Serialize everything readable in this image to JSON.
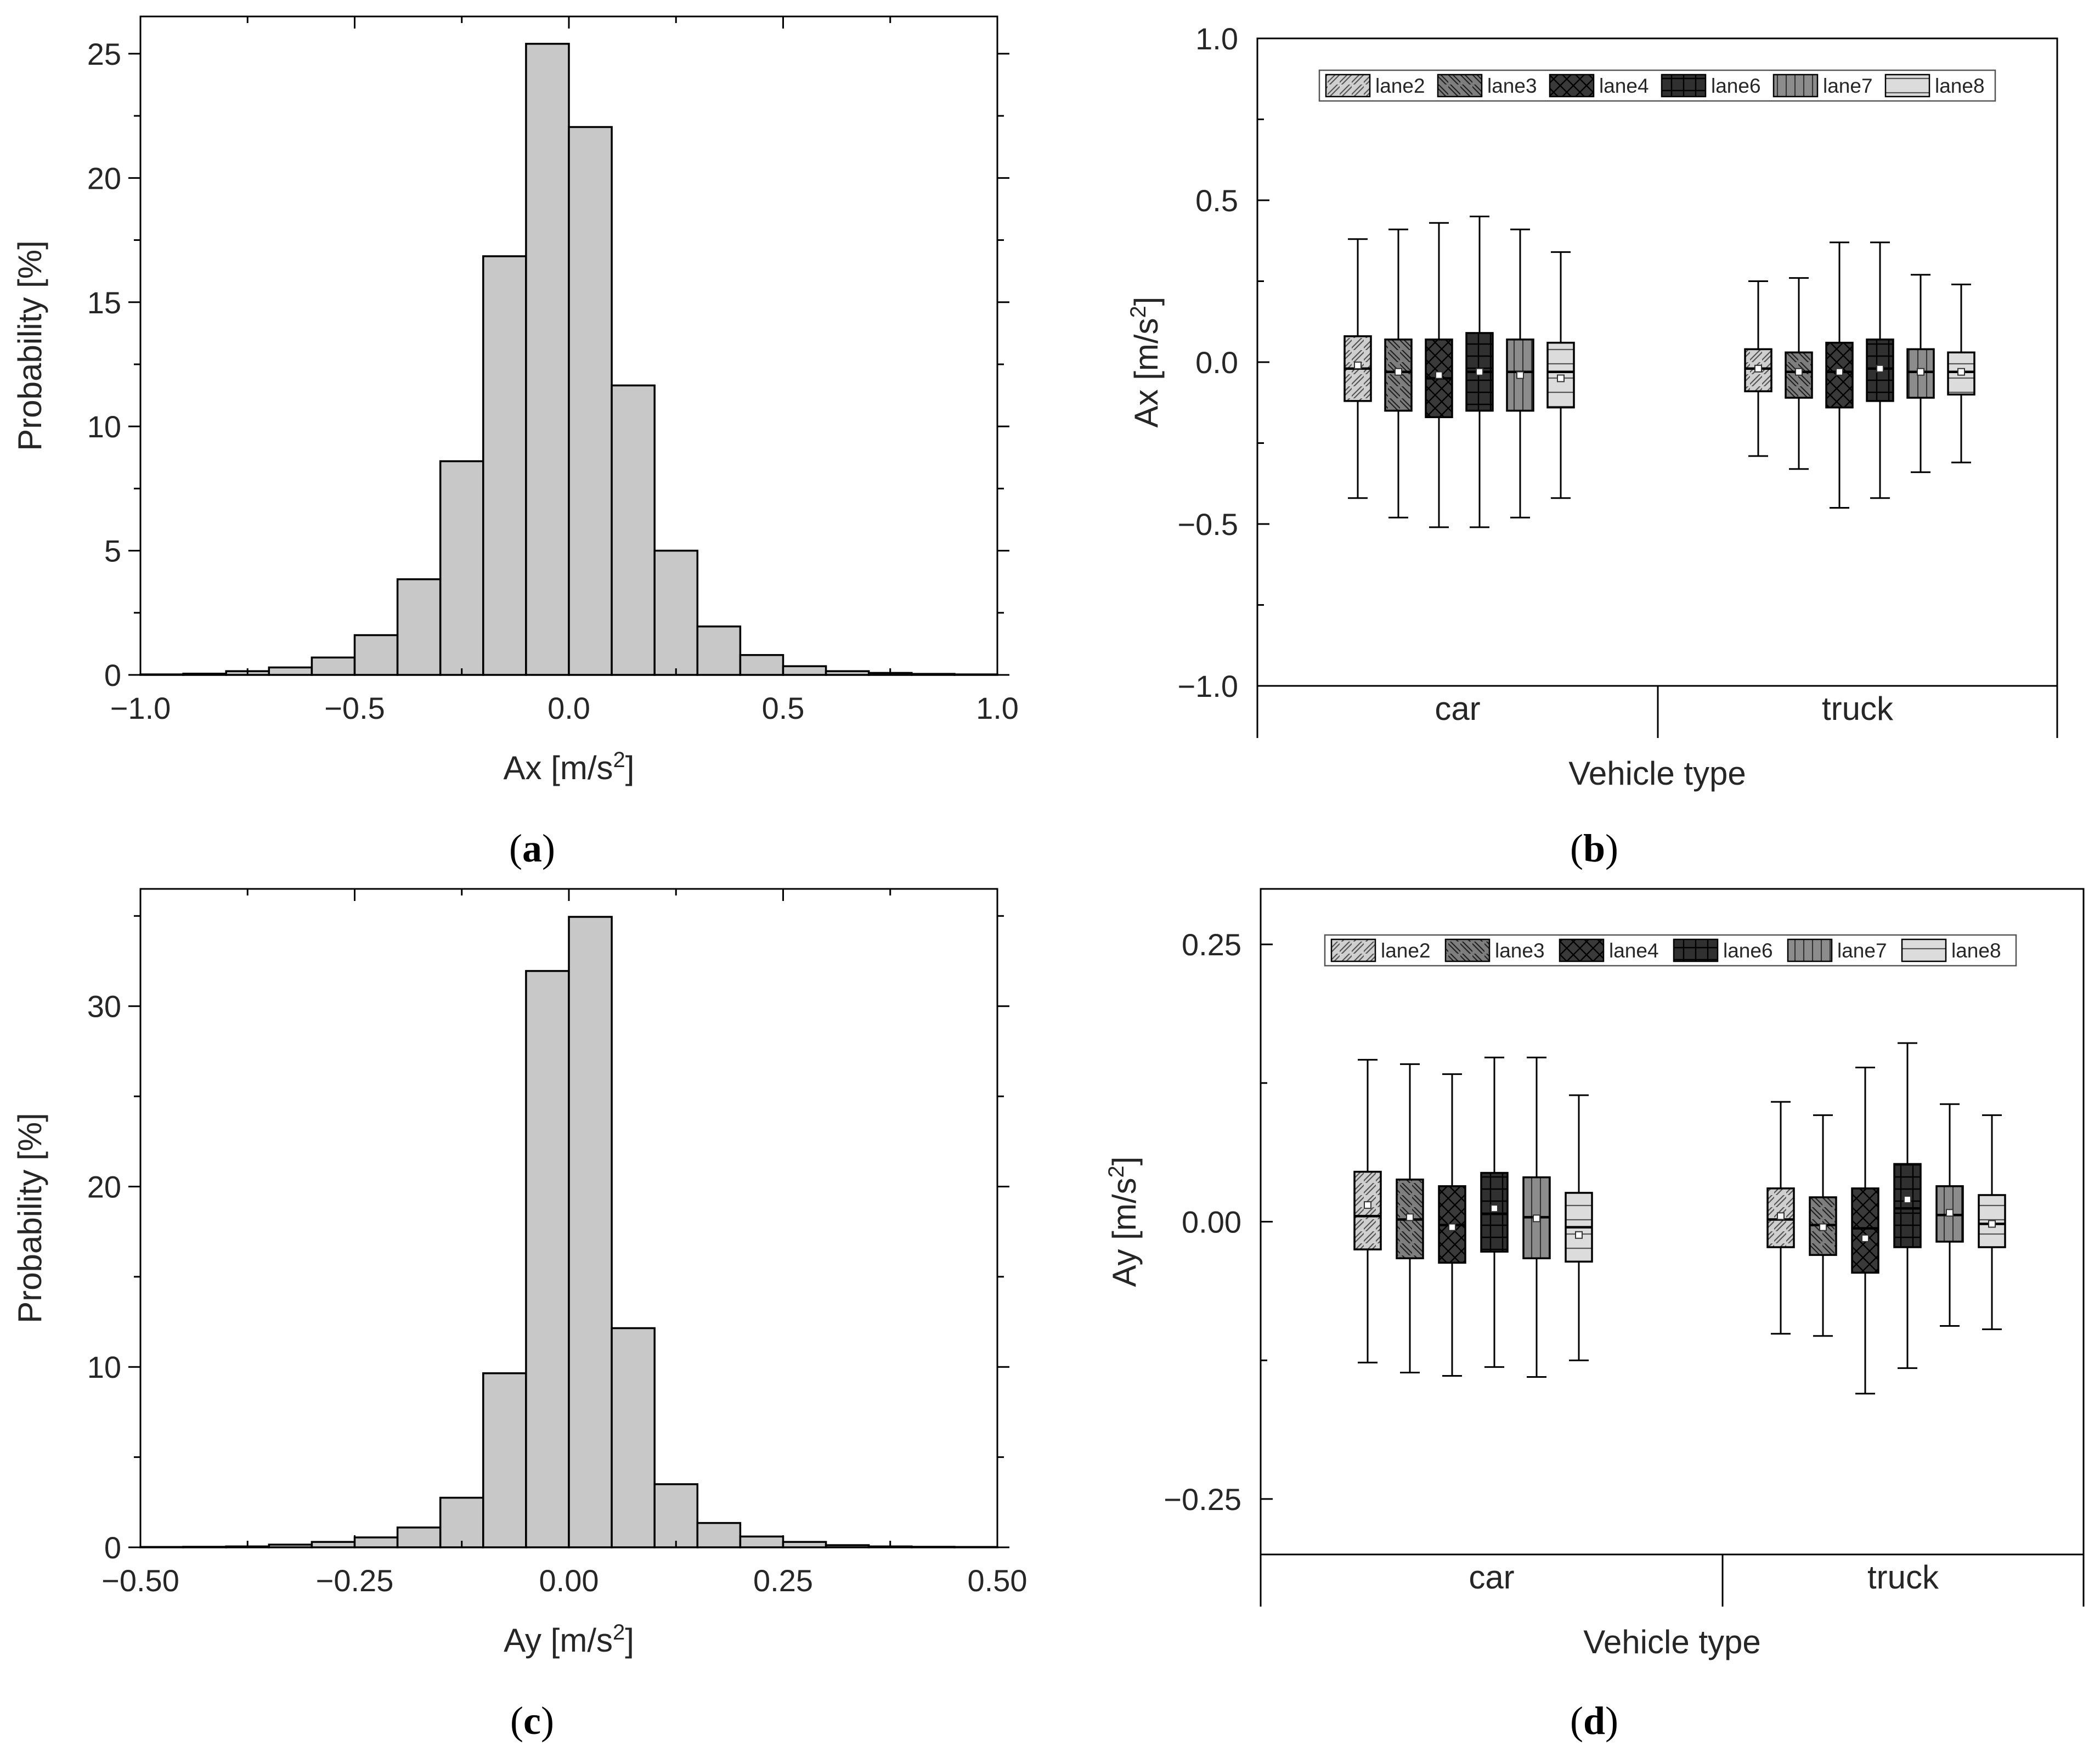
{
  "panels": [
    {
      "id": "a",
      "caption": "a",
      "chart_data": {
        "type": "bar",
        "title": "",
        "xlabel_base": "Ax [m/s",
        "xlabel_sup": "2",
        "xlabel_end": "]",
        "ylabel": "Probability [%]",
        "xlim": [
          -1.0,
          1.0
        ],
        "ylim": [
          0,
          26.5
        ],
        "xticks": [
          -1.0,
          -0.5,
          0.0,
          0.5,
          1.0
        ],
        "xtick_labels": [
          "−1.0",
          "−0.5",
          "0.0",
          "0.5",
          "1.0"
        ],
        "yticks": [
          0,
          5,
          10,
          15,
          20,
          25
        ],
        "ytick_labels": [
          "0",
          "5",
          "10",
          "15",
          "20",
          "25"
        ],
        "bin_width": 0.1,
        "bin_starts": [
          -1.0,
          -0.9,
          -0.8,
          -0.7,
          -0.6,
          -0.5,
          -0.4,
          -0.3,
          -0.2,
          -0.1,
          0.0,
          0.1,
          0.2,
          0.3,
          0.4,
          0.5,
          0.6,
          0.7,
          0.8,
          0.9
        ],
        "values": [
          0.02,
          0.05,
          0.15,
          0.3,
          0.7,
          1.6,
          3.85,
          8.6,
          16.85,
          25.4,
          22.05,
          11.65,
          5.0,
          1.95,
          0.8,
          0.35,
          0.15,
          0.08,
          0.04,
          0.02
        ]
      }
    },
    {
      "id": "b",
      "caption": "b",
      "chart_data": {
        "type": "box",
        "ylabel_base": "Ax [m/s",
        "ylabel_sup": "2",
        "ylabel_end": "]",
        "xlabel": "Vehicle type",
        "ylim": [
          -1.0,
          1.0
        ],
        "yticks": [
          -1.0,
          -0.5,
          0.0,
          0.5,
          1.0
        ],
        "ytick_labels": [
          "−1.0",
          "−0.5",
          "0.0",
          "0.5",
          "1.0"
        ],
        "categories": [
          "car",
          "truck"
        ],
        "legend": [
          "lane2",
          "lane3",
          "lane4",
          "lane6",
          "lane7",
          "lane8"
        ],
        "series": [
          {
            "name": "lane2",
            "fill": "#cfcfcf",
            "pattern": "diag-right",
            "boxes": [
              {
                "whisker_low": -0.42,
                "q1": -0.12,
                "median": -0.02,
                "mean": -0.01,
                "q3": 0.08,
                "whisker_high": 0.38
              },
              {
                "whisker_low": -0.29,
                "q1": -0.09,
                "median": -0.02,
                "mean": -0.02,
                "q3": 0.04,
                "whisker_high": 0.25
              }
            ]
          },
          {
            "name": "lane3",
            "fill": "#7e7e7e",
            "pattern": "diag-left",
            "boxes": [
              {
                "whisker_low": -0.48,
                "q1": -0.15,
                "median": -0.03,
                "mean": -0.03,
                "q3": 0.07,
                "whisker_high": 0.41
              },
              {
                "whisker_low": -0.33,
                "q1": -0.11,
                "median": -0.03,
                "mean": -0.03,
                "q3": 0.03,
                "whisker_high": 0.26
              }
            ]
          },
          {
            "name": "lane4",
            "fill": "#3a3a3a",
            "pattern": "cross-diag",
            "boxes": [
              {
                "whisker_low": -0.51,
                "q1": -0.17,
                "median": -0.05,
                "mean": -0.04,
                "q3": 0.07,
                "whisker_high": 0.43
              },
              {
                "whisker_low": -0.45,
                "q1": -0.14,
                "median": -0.03,
                "mean": -0.03,
                "q3": 0.06,
                "whisker_high": 0.37
              }
            ]
          },
          {
            "name": "lane6",
            "fill": "#303030",
            "pattern": "grid",
            "boxes": [
              {
                "whisker_low": -0.51,
                "q1": -0.15,
                "median": -0.03,
                "mean": -0.03,
                "q3": 0.09,
                "whisker_high": 0.45
              },
              {
                "whisker_low": -0.42,
                "q1": -0.12,
                "median": -0.02,
                "mean": -0.02,
                "q3": 0.07,
                "whisker_high": 0.37
              }
            ]
          },
          {
            "name": "lane7",
            "fill": "#8c8c8c",
            "pattern": "vertical",
            "boxes": [
              {
                "whisker_low": -0.48,
                "q1": -0.15,
                "median": -0.03,
                "mean": -0.04,
                "q3": 0.07,
                "whisker_high": 0.41
              },
              {
                "whisker_low": -0.34,
                "q1": -0.11,
                "median": -0.03,
                "mean": -0.03,
                "q3": 0.04,
                "whisker_high": 0.27
              }
            ]
          },
          {
            "name": "lane8",
            "fill": "#dcdcdc",
            "pattern": "horizontal",
            "boxes": [
              {
                "whisker_low": -0.42,
                "q1": -0.14,
                "median": -0.03,
                "mean": -0.05,
                "q3": 0.06,
                "whisker_high": 0.34
              },
              {
                "whisker_low": -0.31,
                "q1": -0.1,
                "median": -0.03,
                "mean": -0.03,
                "q3": 0.03,
                "whisker_high": 0.24
              }
            ]
          }
        ]
      }
    },
    {
      "id": "c",
      "caption": "c",
      "chart_data": {
        "type": "bar",
        "title": "",
        "xlabel_base": "Ay [m/s",
        "xlabel_sup": "2",
        "xlabel_end": "]",
        "ylabel": "Probability [%]",
        "xlim": [
          -0.5,
          0.5
        ],
        "ylim": [
          0,
          36.5
        ],
        "xticks": [
          -0.5,
          -0.25,
          0.0,
          0.25,
          0.5
        ],
        "xtick_labels": [
          "−0.50",
          "−0.25",
          "0.00",
          "0.25",
          "0.50"
        ],
        "yticks": [
          0,
          10,
          20,
          30
        ],
        "ytick_labels": [
          "0",
          "10",
          "20",
          "30"
        ],
        "bin_width": 0.05,
        "bin_starts": [
          -0.5,
          -0.45,
          -0.4,
          -0.35,
          -0.3,
          -0.25,
          -0.2,
          -0.15,
          -0.1,
          -0.05,
          0.0,
          0.05,
          0.1,
          0.15,
          0.2,
          0.25,
          0.3,
          0.35,
          0.4,
          0.45
        ],
        "values": [
          0.02,
          0.03,
          0.05,
          0.15,
          0.3,
          0.55,
          1.1,
          2.75,
          9.65,
          31.95,
          34.95,
          12.15,
          3.5,
          1.35,
          0.6,
          0.3,
          0.12,
          0.05,
          0.03,
          0.02
        ]
      }
    },
    {
      "id": "d",
      "caption": "d",
      "chart_data": {
        "type": "box",
        "ylabel_base": "Ay [m/s",
        "ylabel_sup": "2",
        "ylabel_end": "]",
        "xlabel": "Vehicle type",
        "ylim": [
          -0.3,
          0.3
        ],
        "yticks": [
          -0.25,
          0.0,
          0.25
        ],
        "ytick_labels": [
          "−0.25",
          "0.00",
          "0.25"
        ],
        "categories": [
          "car",
          "truck"
        ],
        "legend": [
          "lane2",
          "lane3",
          "lane4",
          "lane6",
          "lane7",
          "lane8"
        ],
        "series": [
          {
            "name": "lane2",
            "fill": "#cfcfcf",
            "pattern": "diag-right",
            "boxes": [
              {
                "whisker_low": -0.127,
                "q1": -0.025,
                "median": 0.005,
                "mean": 0.015,
                "q3": 0.045,
                "whisker_high": 0.146
              },
              {
                "whisker_low": -0.101,
                "q1": -0.023,
                "median": 0.002,
                "mean": 0.005,
                "q3": 0.03,
                "whisker_high": 0.108
              }
            ]
          },
          {
            "name": "lane3",
            "fill": "#7e7e7e",
            "pattern": "diag-left",
            "boxes": [
              {
                "whisker_low": -0.136,
                "q1": -0.033,
                "median": 0.002,
                "mean": 0.004,
                "q3": 0.038,
                "whisker_high": 0.142
              },
              {
                "whisker_low": -0.103,
                "q1": -0.03,
                "median": -0.003,
                "mean": -0.005,
                "q3": 0.022,
                "whisker_high": 0.096
              }
            ]
          },
          {
            "name": "lane4",
            "fill": "#3a3a3a",
            "pattern": "cross-diag",
            "boxes": [
              {
                "whisker_low": -0.139,
                "q1": -0.037,
                "median": -0.003,
                "mean": -0.005,
                "q3": 0.032,
                "whisker_high": 0.133
              },
              {
                "whisker_low": -0.155,
                "q1": -0.046,
                "median": -0.006,
                "mean": -0.015,
                "q3": 0.03,
                "whisker_high": 0.139
              }
            ]
          },
          {
            "name": "lane6",
            "fill": "#303030",
            "pattern": "grid",
            "boxes": [
              {
                "whisker_low": -0.131,
                "q1": -0.027,
                "median": 0.007,
                "mean": 0.012,
                "q3": 0.044,
                "whisker_high": 0.148
              },
              {
                "whisker_low": -0.132,
                "q1": -0.023,
                "median": 0.012,
                "mean": 0.02,
                "q3": 0.052,
                "whisker_high": 0.161
              }
            ]
          },
          {
            "name": "lane7",
            "fill": "#8c8c8c",
            "pattern": "vertical",
            "boxes": [
              {
                "whisker_low": -0.14,
                "q1": -0.033,
                "median": 0.004,
                "mean": 0.003,
                "q3": 0.04,
                "whisker_high": 0.148
              },
              {
                "whisker_low": -0.094,
                "q1": -0.018,
                "median": 0.006,
                "mean": 0.008,
                "q3": 0.032,
                "whisker_high": 0.106
              }
            ]
          },
          {
            "name": "lane8",
            "fill": "#dcdcdc",
            "pattern": "horizontal",
            "boxes": [
              {
                "whisker_low": -0.125,
                "q1": -0.036,
                "median": -0.005,
                "mean": -0.012,
                "q3": 0.026,
                "whisker_high": 0.114
              },
              {
                "whisker_low": -0.097,
                "q1": -0.023,
                "median": -0.002,
                "mean": -0.002,
                "q3": 0.024,
                "whisker_high": 0.096
              }
            ]
          }
        ]
      }
    }
  ]
}
